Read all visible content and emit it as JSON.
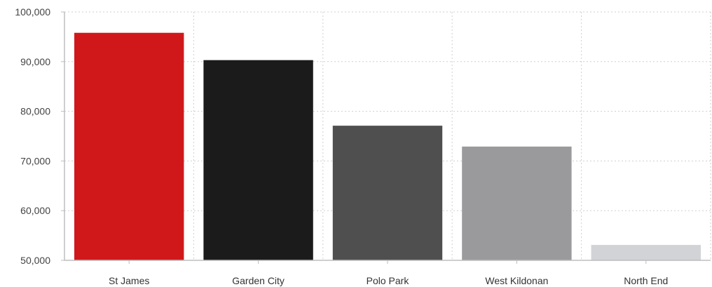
{
  "chart_data": {
    "type": "bar",
    "title": "",
    "xlabel": "",
    "ylabel": "",
    "categories": [
      "St James",
      "Garden City",
      "Polo Park",
      "West Kildonan",
      "North End"
    ],
    "values": [
      95800,
      90300,
      77100,
      72900,
      53100
    ],
    "colors": [
      "#d0181b",
      "#1b1b1b",
      "#4f4f4f",
      "#9a9a9c",
      "#d2d3d7"
    ],
    "ylim": [
      50000,
      100000
    ],
    "yticks": [
      50000,
      60000,
      70000,
      80000,
      90000,
      100000
    ],
    "ytick_labels": [
      "50,000",
      "60,000",
      "70,000",
      "80,000",
      "90,000",
      "100,000"
    ],
    "grid": true,
    "legend": "none"
  }
}
